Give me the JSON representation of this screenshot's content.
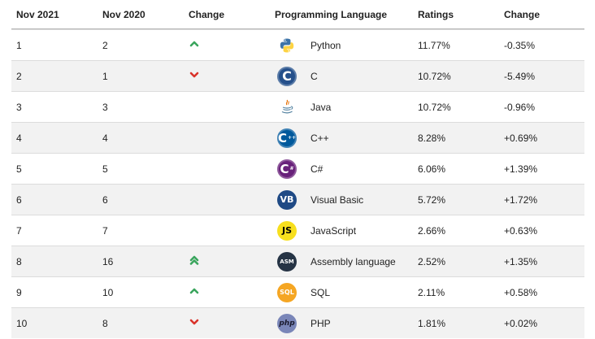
{
  "header": {
    "col1": "Nov 2021",
    "col2": "Nov 2020",
    "col3": "Change",
    "col4": "Programming Language",
    "col5": "Ratings",
    "col6": "Change"
  },
  "rows": [
    {
      "rank": "1",
      "prev": "2",
      "trend": "up",
      "language": "Python",
      "logo": "python-logo",
      "logo_text": "",
      "rating": "11.77%",
      "change": "-0.35%"
    },
    {
      "rank": "2",
      "prev": "1",
      "trend": "down",
      "language": "C",
      "logo": "c-logo",
      "logo_text": "C",
      "rating": "10.72%",
      "change": "-5.49%"
    },
    {
      "rank": "3",
      "prev": "3",
      "trend": "none",
      "language": "Java",
      "logo": "java-logo",
      "logo_text": "",
      "rating": "10.72%",
      "change": "-0.96%"
    },
    {
      "rank": "4",
      "prev": "4",
      "trend": "none",
      "language": "C++",
      "logo": "cpp-logo",
      "logo_text": "C",
      "rating": "8.28%",
      "change": "+0.69%"
    },
    {
      "rank": "5",
      "prev": "5",
      "trend": "none",
      "language": "C#",
      "logo": "csharp-logo",
      "logo_text": "C",
      "rating": "6.06%",
      "change": "+1.39%"
    },
    {
      "rank": "6",
      "prev": "6",
      "trend": "none",
      "language": "Visual Basic",
      "logo": "vb-logo",
      "logo_text": "VB",
      "rating": "5.72%",
      "change": "+1.72%"
    },
    {
      "rank": "7",
      "prev": "7",
      "trend": "none",
      "language": "JavaScript",
      "logo": "js-logo",
      "logo_text": "JS",
      "rating": "2.66%",
      "change": "+0.63%"
    },
    {
      "rank": "8",
      "prev": "16",
      "trend": "up2",
      "language": "Assembly language",
      "logo": "asm-logo",
      "logo_text": "ASM",
      "rating": "2.52%",
      "change": "+1.35%"
    },
    {
      "rank": "9",
      "prev": "10",
      "trend": "up",
      "language": "SQL",
      "logo": "sql-logo",
      "logo_text": "SQL",
      "rating": "2.11%",
      "change": "+0.58%"
    },
    {
      "rank": "10",
      "prev": "8",
      "trend": "down",
      "language": "PHP",
      "logo": "php-logo",
      "logo_text": "php",
      "rating": "1.81%",
      "change": "+0.02%"
    }
  ],
  "colors": {
    "up": "#3aa55d",
    "down": "#d9332b",
    "alt_row": "#f2f2f2"
  }
}
